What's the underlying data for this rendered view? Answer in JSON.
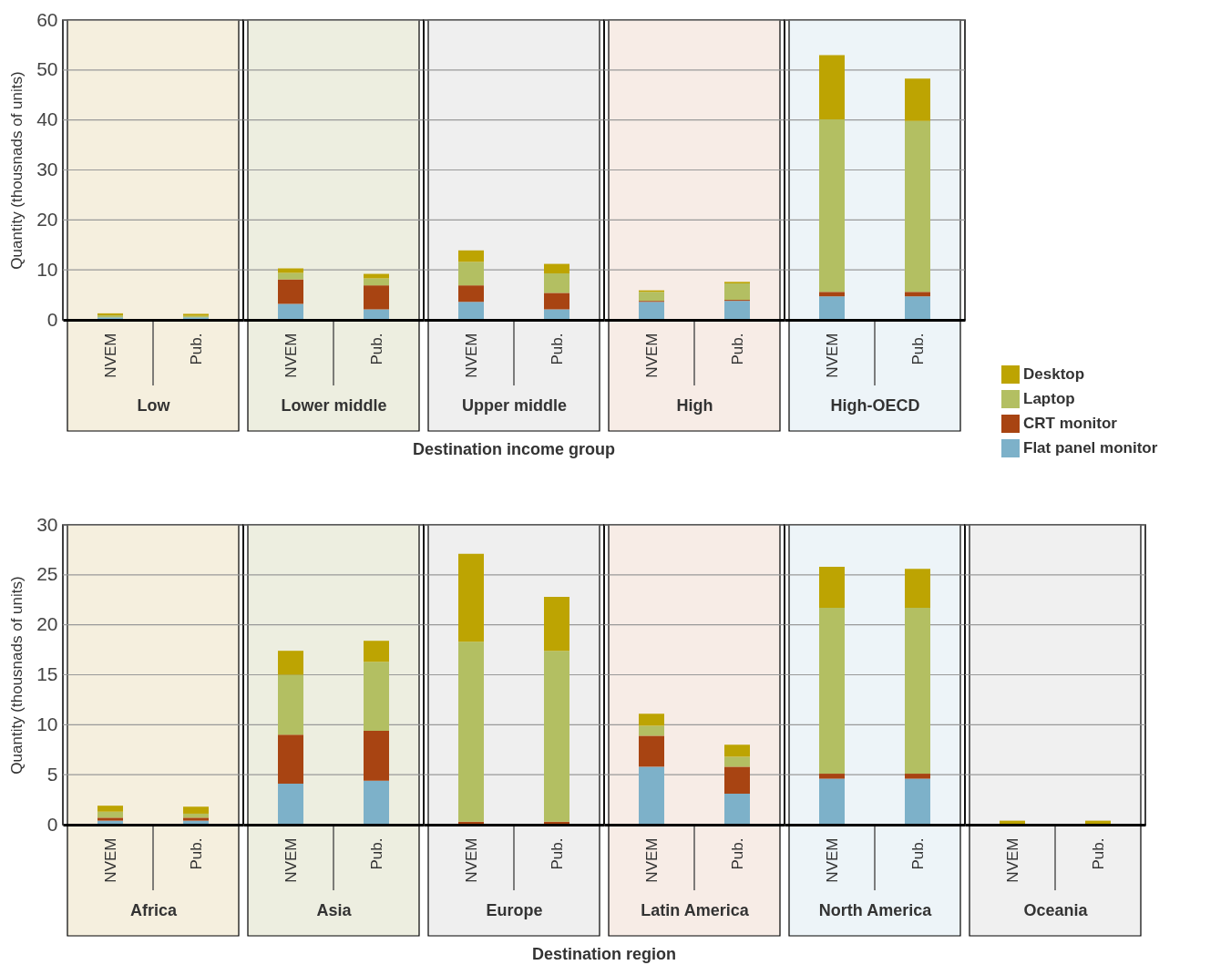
{
  "chart_data": [
    {
      "type": "bar",
      "stacked": true,
      "ylabel": "Quantity (thousnads of units)",
      "xlabel": "Low",
      "categories": [
        "NVEM",
        "Pub."
      ],
      "series": [
        {
          "color": "#7db1c9",
          "values": [
            0.5,
            0.5
          ]
        },
        {
          "color": "#a84412",
          "values": [
            null,
            null
          ]
        },
        {
          "color": "#b3bf62",
          "values": [
            0.4,
            0.3
          ]
        },
        {
          "color": "#bda402",
          "values": [
            0.4,
            0.4
          ]
        }
      ],
      "ylim": [
        0,
        60
      ],
      "yticks": [
        0,
        10,
        20,
        30,
        40,
        50,
        60
      ],
      "grid": "y",
      "bands": [
        {
          "axis": "x",
          "from": "NVEM",
          "to": "Pub.",
          "color": "#f5efde"
        }
      ]
    },
    {
      "type": "bar",
      "stacked": true,
      "xlabel": "Lower middle",
      "categories": [
        "NVEM",
        "Pub."
      ],
      "series": [
        {
          "color": "#7db1c9",
          "values": [
            3.2,
            2.1
          ]
        },
        {
          "color": "#a84412",
          "values": [
            4.9,
            4.8
          ]
        },
        {
          "color": "#b3bf62",
          "values": [
            1.3,
            1.4
          ]
        },
        {
          "color": "#bda402",
          "values": [
            0.9,
            0.9
          ]
        }
      ],
      "ylim": [
        0,
        60
      ],
      "yticks": [
        0,
        10,
        20,
        30,
        40,
        50,
        60
      ],
      "grid": "y",
      "tick_labels": "x",
      "bands": [
        {
          "axis": "x",
          "from": "NVEM",
          "to": "Pub.",
          "color": "#edeee0"
        }
      ]
    },
    {
      "type": "bar",
      "stacked": true,
      "xlabel": "Upper middle",
      "categories": [
        "NVEM",
        "Pub."
      ],
      "annotations": [
        "Destination income group"
      ],
      "series": [
        {
          "color": "#7db1c9",
          "values": [
            3.6,
            2.1
          ]
        },
        {
          "color": "#a84412",
          "values": [
            3.3,
            3.3
          ]
        },
        {
          "color": "#b3bf62",
          "values": [
            4.7,
            3.9
          ]
        },
        {
          "color": "#bda402",
          "values": [
            2.3,
            1.9
          ]
        }
      ],
      "ylim": [
        0,
        60
      ],
      "yticks": [
        0,
        10,
        20,
        30,
        40,
        50,
        60
      ],
      "grid": "y",
      "tick_labels": "x",
      "bands": [
        {
          "axis": "x",
          "from": "NVEM",
          "to": "Pub.",
          "color": "#efefef"
        }
      ]
    },
    {
      "type": "bar",
      "stacked": true,
      "xlabel": "High",
      "categories": [
        "NVEM",
        "Pub."
      ],
      "series": [
        {
          "color": "#7db1c9",
          "values": [
            3.6,
            3.8
          ]
        },
        {
          "color": "#a84412",
          "values": [
            0.2,
            0.2
          ]
        },
        {
          "color": "#b3bf62",
          "values": [
            1.8,
            3.3
          ]
        },
        {
          "color": "#bda402",
          "values": [
            0.3,
            0.3
          ]
        }
      ],
      "ylim": [
        0,
        60
      ],
      "yticks": [
        0,
        10,
        20,
        30,
        40,
        50,
        60
      ],
      "grid": "y",
      "tick_labels": "x",
      "bands": [
        {
          "axis": "x",
          "from": "NVEM",
          "to": "Pub.",
          "color": "#f7ece6"
        }
      ]
    },
    {
      "type": "bar",
      "stacked": true,
      "xlabel": "High-OECD",
      "categories": [
        "NVEM",
        "Pub."
      ],
      "legend": "bottom right",
      "series": [
        {
          "name": "Flat panel monitor",
          "color": "#7db1c9",
          "values": [
            4.7,
            4.7
          ]
        },
        {
          "name": "CRT monitor",
          "color": "#a84412",
          "values": [
            0.9,
            0.9
          ]
        },
        {
          "name": "Laptop",
          "color": "#b3bf62",
          "values": [
            34.5,
            34.2
          ]
        },
        {
          "name": "Desktop",
          "color": "#bda402",
          "values": [
            12.9,
            8.5
          ]
        }
      ],
      "ylim": [
        0,
        60
      ],
      "yticks": [
        0,
        10,
        20,
        30,
        40,
        50,
        60
      ],
      "grid": "y",
      "tick_labels": "x",
      "bands": [
        {
          "axis": "x",
          "from": "NVEM",
          "to": "Pub.",
          "color": "#edf4f8"
        }
      ]
    },
    {
      "type": "bar",
      "stacked": true,
      "ylabel": "Quantity (thousnads of units)",
      "xlabel": "Africa",
      "categories": [
        "NVEM",
        "Pub."
      ],
      "series": [
        {
          "color": "#7db1c9",
          "values": [
            0.4,
            0.4
          ]
        },
        {
          "color": "#a84412",
          "values": [
            0.3,
            0.3
          ]
        },
        {
          "color": "#b3bf62",
          "values": [
            0.6,
            0.4
          ]
        },
        {
          "color": "#bda402",
          "values": [
            0.6,
            0.7
          ]
        }
      ],
      "ylim": [
        0,
        30
      ],
      "yticks": [
        0,
        5,
        10,
        15,
        20,
        25,
        30
      ],
      "grid": "y",
      "bands": [
        {
          "axis": "x",
          "from": "NVEM",
          "to": "Pub.",
          "color": "#f5efde"
        }
      ]
    },
    {
      "type": "bar",
      "stacked": true,
      "xlabel": "Asia",
      "categories": [
        "NVEM",
        "Pub."
      ],
      "series": [
        {
          "color": "#7db1c9",
          "values": [
            4.1,
            4.4
          ]
        },
        {
          "color": "#a84412",
          "values": [
            4.9,
            5.0
          ]
        },
        {
          "color": "#b3bf62",
          "values": [
            6.0,
            6.9
          ]
        },
        {
          "color": "#bda402",
          "values": [
            2.4,
            2.1
          ]
        }
      ],
      "ylim": [
        0,
        30
      ],
      "yticks": [
        0,
        5,
        10,
        15,
        20,
        25,
        30
      ],
      "grid": "y",
      "tick_labels": "x",
      "bands": [
        {
          "axis": "x",
          "from": "NVEM",
          "to": "Pub.",
          "color": "#edeee0"
        }
      ]
    },
    {
      "type": "bar",
      "stacked": true,
      "xlabel": "Europe",
      "categories": [
        "NVEM",
        "Pub."
      ],
      "annotations": [
        "Destination region"
      ],
      "series": [
        {
          "color": "#7db1c9",
          "values": [
            0,
            0
          ]
        },
        {
          "color": "#a84412",
          "values": [
            0.3,
            0.3
          ]
        },
        {
          "color": "#b3bf62",
          "values": [
            18.0,
            17.1
          ]
        },
        {
          "color": "#bda402",
          "values": [
            8.8,
            5.4
          ]
        }
      ],
      "ylim": [
        0,
        30
      ],
      "yticks": [
        0,
        5,
        10,
        15,
        20,
        25,
        30
      ],
      "grid": "y",
      "tick_labels": "x",
      "bands": [
        {
          "axis": "x",
          "from": "NVEM",
          "to": "Pub.",
          "color": "#efefef"
        }
      ]
    },
    {
      "type": "bar",
      "stacked": true,
      "xlabel": "Latin America",
      "categories": [
        "NVEM",
        "Pub."
      ],
      "series": [
        {
          "color": "#7db1c9",
          "values": [
            5.8,
            3.1
          ]
        },
        {
          "color": "#a84412",
          "values": [
            3.1,
            2.7
          ]
        },
        {
          "color": "#b3bf62",
          "values": [
            1.0,
            1.0
          ]
        },
        {
          "color": "#bda402",
          "values": [
            1.2,
            1.2
          ]
        }
      ],
      "ylim": [
        0,
        30
      ],
      "yticks": [
        0,
        5,
        10,
        15,
        20,
        25,
        30
      ],
      "grid": "y",
      "tick_labels": "x",
      "bands": [
        {
          "axis": "x",
          "from": "NVEM",
          "to": "Pub.",
          "color": "#f7ece6"
        }
      ]
    },
    {
      "type": "bar",
      "stacked": true,
      "xlabel": "North America",
      "categories": [
        "NVEM",
        "Pub."
      ],
      "series": [
        {
          "color": "#7db1c9",
          "values": [
            4.6,
            4.6
          ]
        },
        {
          "color": "#a84412",
          "values": [
            0.5,
            0.5
          ]
        },
        {
          "color": "#b3bf62",
          "values": [
            16.6,
            16.6
          ]
        },
        {
          "color": "#bda402",
          "values": [
            4.1,
            3.9
          ]
        }
      ],
      "ylim": [
        0,
        30
      ],
      "yticks": [
        0,
        5,
        10,
        15,
        20,
        25,
        30
      ],
      "grid": "y",
      "tick_labels": "x",
      "bands": [
        {
          "axis": "x",
          "from": "NVEM",
          "to": "Pub.",
          "color": "#edf4f8"
        }
      ]
    },
    {
      "type": "bar",
      "stacked": true,
      "xlabel": "Oceania",
      "categories": [
        "NVEM",
        "Pub."
      ],
      "series": [
        {
          "color": "#7db1c9",
          "values": [
            0,
            0
          ]
        },
        {
          "color": "#a84412",
          "values": [
            0,
            0
          ]
        },
        {
          "color": "#b3bf62",
          "values": [
            0,
            0
          ]
        },
        {
          "color": "#bda402",
          "values": [
            0.4,
            0.4
          ]
        }
      ],
      "ylim": [
        0,
        30
      ],
      "yticks": [
        0,
        5,
        10,
        15,
        20,
        25,
        30
      ],
      "grid": "y",
      "tick_labels": "x",
      "bands": [
        {
          "axis": "x",
          "from": "NVEM",
          "to": "Pub.",
          "color": "#f0f0f0"
        }
      ]
    }
  ]
}
